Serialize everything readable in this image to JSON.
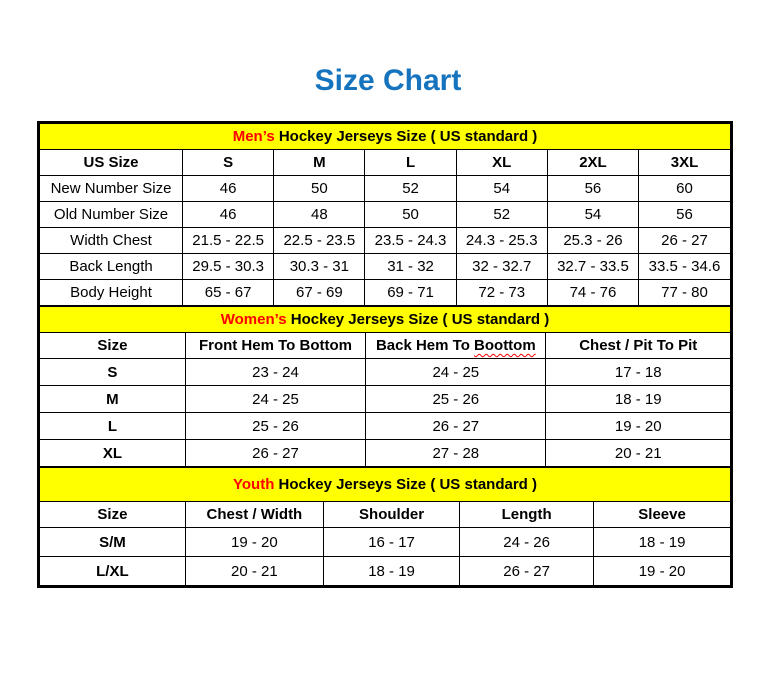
{
  "page": {
    "title": "Size Chart"
  },
  "colors": {
    "title_blue": "#1673be",
    "banner_yellow": "#ffff00",
    "accent_red": "#ff0000",
    "border_black": "#000000"
  },
  "tables": [
    {
      "id": "mens",
      "banner_accent": "Men’s",
      "banner_rest": " Hockey Jerseys Size ( US standard )",
      "columns": [
        {
          "text": "US Size"
        },
        {
          "text": "S"
        },
        {
          "text": "M"
        },
        {
          "text": "L"
        },
        {
          "text": "XL"
        },
        {
          "text": "2XL"
        },
        {
          "text": "3XL"
        }
      ],
      "rows": [
        {
          "label": "New Number Size",
          "values": [
            "46",
            "50",
            "52",
            "54",
            "56",
            "60"
          ]
        },
        {
          "label": "Old Number Size",
          "values": [
            "46",
            "48",
            "50",
            "52",
            "54",
            "56"
          ]
        },
        {
          "label": "Width Chest",
          "values": [
            "21.5 - 22.5",
            "22.5 - 23.5",
            "23.5 - 24.3",
            "24.3 - 25.3",
            "25.3 - 26",
            "26 - 27"
          ]
        },
        {
          "label": "Back Length",
          "values": [
            "29.5 - 30.3",
            "30.3 - 31",
            "31 - 32",
            "32 - 32.7",
            "32.7 - 33.5",
            "33.5 - 34.6"
          ]
        },
        {
          "label": "Body Height",
          "values": [
            "65 - 67",
            "67 - 69",
            "69 - 71",
            "72 - 73",
            "74 - 76",
            "77 - 80"
          ]
        }
      ]
    },
    {
      "id": "womens",
      "banner_accent": "Women’s",
      "banner_rest": " Hockey Jerseys Size ( US standard )",
      "columns": [
        {
          "text": "Size"
        },
        {
          "text": "Front Hem To Bottom"
        },
        {
          "text": "Back Hem To ",
          "squiggle": "Boottom"
        },
        {
          "text": "Chest / Pit To Pit"
        }
      ],
      "rows": [
        {
          "label": "S",
          "values": [
            "23 - 24",
            "24 - 25",
            "17 - 18"
          ]
        },
        {
          "label": "M",
          "values": [
            "24 - 25",
            "25 - 26",
            "18 - 19"
          ]
        },
        {
          "label": "L",
          "values": [
            "25 - 26",
            "26 - 27",
            "19 - 20"
          ]
        },
        {
          "label": "XL",
          "values": [
            "26 - 27",
            "27 - 28",
            "20 - 21"
          ]
        }
      ]
    },
    {
      "id": "youth",
      "banner_accent": "Youth",
      "banner_rest": " Hockey Jerseys Size ( US standard )",
      "columns": [
        {
          "text": "Size"
        },
        {
          "text": "Chest / Width"
        },
        {
          "text": "Shoulder"
        },
        {
          "text": "Length"
        },
        {
          "text": "Sleeve"
        }
      ],
      "rows": [
        {
          "label": "S/M",
          "values": [
            "19 - 20",
            "16 - 17",
            "24 - 26",
            "18 - 19"
          ]
        },
        {
          "label": "L/XL",
          "values": [
            "20 - 21",
            "18 - 19",
            "26 - 27",
            "19 - 20"
          ]
        }
      ]
    }
  ]
}
